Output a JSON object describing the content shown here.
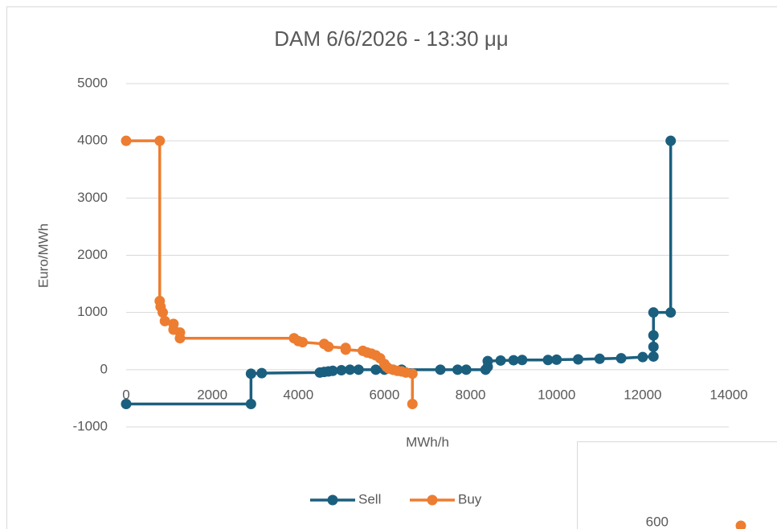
{
  "chart_data": [
    {
      "type": "line",
      "title": "DAM 6/6/2026 - 13:30 μμ",
      "xlabel": "MWh/h",
      "ylabel": "Euro/MWh",
      "xlim": [
        0,
        14000
      ],
      "xticks": [
        0,
        2000,
        4000,
        6000,
        8000,
        10000,
        12000,
        14000
      ],
      "ylim": [
        -1000,
        5000
      ],
      "yticks": [
        -1000,
        0,
        1000,
        2000,
        3000,
        4000,
        5000
      ],
      "grid": true,
      "legend": "bottom",
      "series": [
        {
          "name": "Sell",
          "color": "#1b5f7f",
          "x": [
            0,
            2900,
            2900,
            3150,
            4500,
            4600,
            4700,
            4800,
            5000,
            5200,
            5400,
            5800,
            6000,
            6200,
            6400,
            7300,
            7700,
            7900,
            8350,
            8400,
            8400,
            8700,
            9000,
            9200,
            9800,
            10000,
            10500,
            11000,
            11500,
            12000,
            12250,
            12250,
            12250,
            12250,
            12650,
            12650
          ],
          "values": [
            -600,
            -600,
            -70,
            -60,
            -50,
            -40,
            -30,
            -20,
            -10,
            0,
            0,
            0,
            0,
            0,
            0,
            0,
            0,
            0,
            0,
            50,
            150,
            160,
            165,
            170,
            170,
            175,
            180,
            190,
            200,
            220,
            230,
            400,
            600,
            1000,
            1000,
            4000
          ]
        },
        {
          "name": "Buy",
          "color": "#ed7d31",
          "x": [
            0,
            780,
            780,
            800,
            850,
            900,
            1100,
            1100,
            1250,
            1250,
            3900,
            4000,
            4100,
            4600,
            4700,
            5100,
            5100,
            5500,
            5600,
            5700,
            5800,
            5900,
            6000,
            6050,
            6100,
            6200,
            6300,
            6400,
            6500,
            6650,
            6650
          ],
          "values": [
            4000,
            4000,
            1200,
            1100,
            1000,
            850,
            800,
            700,
            650,
            550,
            550,
            500,
            480,
            450,
            400,
            380,
            350,
            330,
            300,
            280,
            250,
            200,
            100,
            50,
            20,
            0,
            -20,
            -30,
            -50,
            -70,
            -600
          ]
        }
      ]
    },
    {
      "type": "line",
      "yticks": [
        600
      ],
      "series": [
        {
          "color": "#ed7d31",
          "values": [
            600
          ]
        }
      ]
    }
  ]
}
